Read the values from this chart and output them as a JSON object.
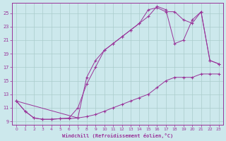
{
  "xlabel": "Windchill (Refroidissement éolien,°C)",
  "bg_color": "#cce8ec",
  "grid_color": "#aacccc",
  "line_color": "#993399",
  "xlim": [
    -0.5,
    23.5
  ],
  "ylim": [
    8.5,
    26.5
  ],
  "yticks": [
    9,
    11,
    13,
    15,
    17,
    19,
    21,
    23,
    25
  ],
  "xticks": [
    0,
    1,
    2,
    3,
    4,
    5,
    6,
    7,
    8,
    9,
    10,
    11,
    12,
    13,
    14,
    15,
    16,
    17,
    18,
    19,
    20,
    21,
    22,
    23
  ],
  "line1_x": [
    0,
    1,
    2,
    3,
    4,
    5,
    6,
    7,
    8,
    9,
    10,
    11,
    12,
    13,
    14,
    15,
    16,
    17,
    18,
    19,
    20,
    21,
    22,
    23
  ],
  "line1_y": [
    12,
    10.5,
    9.5,
    9.3,
    9.3,
    9.4,
    9.4,
    9.5,
    9.7,
    10,
    10.5,
    11,
    11.5,
    12,
    12.5,
    13,
    14,
    15,
    15.5,
    15.5,
    15.5,
    16,
    16,
    16
  ],
  "line2_x": [
    0,
    1,
    2,
    3,
    4,
    5,
    6,
    7,
    8,
    9,
    10,
    11,
    12,
    13,
    14,
    15,
    16,
    17,
    18,
    19,
    20,
    21,
    22,
    23
  ],
  "line2_y": [
    12,
    10.5,
    9.5,
    9.3,
    9.3,
    9.4,
    9.5,
    11,
    14.5,
    17,
    19.5,
    20.5,
    21.5,
    22.5,
    23.5,
    25.5,
    25.8,
    25.2,
    25.2,
    24,
    23.5,
    25.2,
    18,
    17.5
  ],
  "line3_x": [
    0,
    7,
    8,
    9,
    10,
    11,
    12,
    13,
    14,
    15,
    16,
    17,
    18,
    19,
    20,
    21,
    22,
    23
  ],
  "line3_y": [
    12,
    9.5,
    15.5,
    18,
    19.5,
    20.5,
    21.5,
    22.5,
    23.5,
    24.5,
    26,
    25.5,
    20.5,
    21,
    24,
    25.2,
    18,
    17.5
  ]
}
